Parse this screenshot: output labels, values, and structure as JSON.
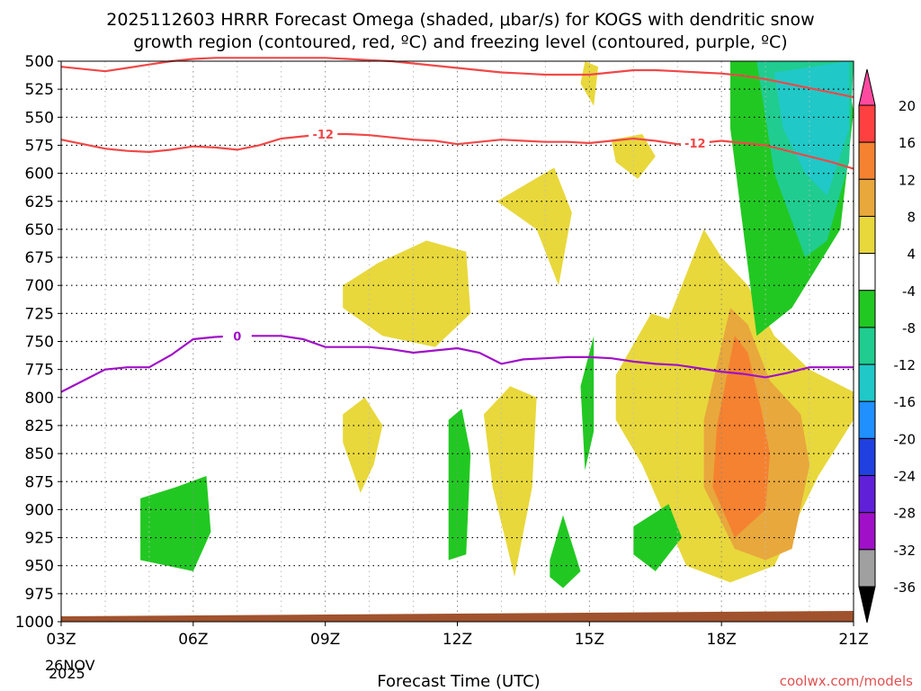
{
  "chart_data": {
    "type": "contour",
    "title_line1": "2025112603 HRRR Forecast Omega (shaded, μbar/s) for KOGS with dendritic snow",
    "title_line2": "growth region (contoured, red, ºC) and freezing level (contoured, purple, ºC)",
    "xlabel": "Forecast Time (UTC)",
    "x_ticks": [
      "03Z",
      "06Z",
      "09Z",
      "12Z",
      "15Z",
      "18Z",
      "21Z"
    ],
    "x_start_date": "26NOV",
    "x_start_year": "2025",
    "x_range_hours": [
      3,
      21
    ],
    "y_ticks": [
      500,
      525,
      550,
      575,
      600,
      625,
      650,
      675,
      700,
      725,
      750,
      775,
      800,
      825,
      850,
      875,
      900,
      925,
      950,
      975,
      1000
    ],
    "y_range_hpa": [
      500,
      1000
    ],
    "grid": true,
    "credit": "coolwx.com/models",
    "colorbar": {
      "levels": [
        "20",
        "16",
        "12",
        "8",
        "4",
        "-4",
        "-8",
        "-12",
        "-16",
        "-20",
        "-24",
        "-28",
        "-32",
        "-36"
      ],
      "colors": [
        "#ff4aa0",
        "#ff4040",
        "#f58230",
        "#e8a83c",
        "#e8d83c",
        "#ffffff",
        "#22c822",
        "#20cc90",
        "#20c8c8",
        "#2090ff",
        "#2040e0",
        "#6020d8",
        "#a010c8",
        "#a0a0a0",
        "#000000"
      ]
    },
    "contour_labels": {
      "dgz": "-12",
      "freezing": "0"
    },
    "series": [
      {
        "name": "freezing level 0C (purple)",
        "x": [
          3,
          3.5,
          4,
          4.5,
          5,
          5.5,
          6,
          6.5,
          7,
          7.5,
          8,
          8.5,
          9,
          9.5,
          10,
          10.5,
          11,
          11.5,
          12,
          12.5,
          13,
          13.5,
          14,
          14.5,
          15,
          15.5,
          16,
          16.5,
          17,
          17.5,
          18,
          18.5,
          19,
          19.5,
          20,
          20.5,
          21
        ],
        "y": [
          795,
          785,
          775,
          773,
          773,
          762,
          748,
          746,
          745,
          745,
          745,
          748,
          755,
          755,
          755,
          757,
          760,
          758,
          756,
          760,
          770,
          766,
          765,
          764,
          764,
          765,
          768,
          770,
          771,
          774,
          777,
          779,
          782,
          778,
          773,
          773,
          773
        ]
      },
      {
        "name": "DGZ -12C lower (red)",
        "x": [
          3,
          3.5,
          4,
          4.5,
          5,
          5.5,
          6,
          6.5,
          7,
          7.5,
          8,
          8.5,
          9,
          9.5,
          10,
          10.5,
          11,
          11.5,
          12,
          12.5,
          13,
          13.5,
          14,
          14.5,
          15,
          15.5,
          16,
          16.5,
          17,
          17.5,
          18,
          18.5,
          19,
          19.5,
          20,
          20.5,
          21
        ],
        "y": [
          570,
          574,
          578,
          580,
          581,
          579,
          576,
          577,
          579,
          575,
          569,
          567,
          565,
          565,
          566,
          568,
          570,
          571,
          574,
          572,
          570,
          571,
          572,
          572,
          573,
          571,
          569,
          571,
          574,
          573,
          571,
          573,
          575,
          580,
          585,
          590,
          596
        ]
      },
      {
        "name": "DGZ -12C upper (red)",
        "x": [
          3,
          3.5,
          4,
          4.5,
          5,
          5.5,
          6,
          6.5,
          7,
          7.5,
          8,
          8.5,
          9,
          9.5,
          10,
          10.5,
          11,
          11.5,
          12,
          12.5,
          13,
          13.5,
          14,
          14.5,
          15,
          15.5,
          16,
          16.5,
          17,
          17.5,
          18,
          18.5,
          19,
          19.5,
          20,
          20.5,
          21
        ],
        "y": [
          505,
          507,
          509,
          506,
          503,
          500,
          498,
          497,
          497,
          497,
          497,
          497,
          497,
          498,
          499,
          500,
          502,
          504,
          506,
          508,
          510,
          511,
          512,
          512,
          512,
          510,
          508,
          508,
          509,
          510,
          511,
          513,
          516,
          520,
          524,
          528,
          532
        ]
      }
    ],
    "shaded_regions": [
      {
        "value": 6,
        "x": [
          15.5,
          16.2,
          16.5,
          16.1,
          15.6
        ],
        "y": [
          570,
          565,
          585,
          605,
          590
        ]
      },
      {
        "value": 6,
        "x": [
          14.9,
          15.2,
          15.1,
          14.8
        ],
        "y": [
          500,
          505,
          540,
          520
        ]
      },
      {
        "value": 6,
        "x": [
          12.9,
          14.2,
          14.6,
          14.3,
          13.8
        ],
        "y": [
          625,
          595,
          635,
          700,
          650
        ]
      },
      {
        "value": 6,
        "x": [
          9.4,
          10.2,
          11.3,
          12.2,
          12.3,
          11.5,
          10.3,
          9.4
        ],
        "y": [
          700,
          680,
          660,
          670,
          725,
          755,
          745,
          720
        ]
      },
      {
        "value": 6,
        "x": [
          9.4,
          9.9,
          10.3,
          10.1,
          9.8,
          9.4
        ],
        "y": [
          815,
          800,
          825,
          860,
          885,
          840
        ]
      },
      {
        "value": 6,
        "x": [
          12.6,
          13.2,
          13.8,
          13.7,
          13.3,
          12.8
        ],
        "y": [
          815,
          790,
          800,
          880,
          960,
          880
        ]
      },
      {
        "value": 6,
        "x": [
          15.6,
          16.4,
          16.8,
          17.2,
          17.6,
          18.0,
          18.6,
          19.2,
          20.0,
          21.0,
          21.0,
          20.2,
          19.2,
          18.2,
          17.2,
          16.2,
          15.6
        ],
        "y": [
          780,
          725,
          730,
          690,
          650,
          675,
          700,
          745,
          775,
          795,
          820,
          870,
          950,
          965,
          950,
          860,
          820
        ]
      },
      {
        "value": 10,
        "x": [
          17.6,
          18.2,
          18.6,
          19.1,
          19.8,
          20.0,
          19.6,
          19.0,
          18.3,
          17.6
        ],
        "y": [
          820,
          720,
          735,
          785,
          815,
          860,
          935,
          945,
          935,
          880
        ]
      },
      {
        "value": 14,
        "x": [
          17.9,
          18.3,
          18.6,
          18.9,
          19.1,
          19.0,
          18.3,
          17.8
        ],
        "y": [
          825,
          745,
          760,
          810,
          850,
          900,
          925,
          880
        ]
      },
      {
        "value": -6,
        "x": [
          4.8,
          5.6,
          6.3,
          6.4,
          6.0,
          4.8
        ],
        "y": [
          890,
          880,
          870,
          920,
          955,
          945
        ]
      },
      {
        "value": -6,
        "x": [
          11.8,
          12.1,
          12.3,
          12.2,
          11.8
        ],
        "y": [
          820,
          810,
          850,
          940,
          945
        ]
      },
      {
        "value": -6,
        "x": [
          14.1,
          14.4,
          14.8,
          14.4,
          14.1
        ],
        "y": [
          945,
          905,
          955,
          970,
          960
        ]
      },
      {
        "value": -6,
        "x": [
          16.0,
          16.8,
          17.1,
          16.5,
          16.0
        ],
        "y": [
          915,
          895,
          925,
          955,
          940
        ]
      },
      {
        "value": -6,
        "x": [
          14.8,
          15.1,
          15.1,
          14.9
        ],
        "y": [
          790,
          745,
          830,
          865
        ]
      },
      {
        "value": -6,
        "x": [
          18.2,
          19.6,
          20.8,
          21.0,
          20.7,
          19.6,
          18.8,
          18.2
        ],
        "y": [
          500,
          500,
          500,
          545,
          650,
          720,
          745,
          560
        ]
      },
      {
        "value": -10,
        "x": [
          18.8,
          20.0,
          21.0,
          20.9,
          20.4,
          19.9,
          19.2
        ],
        "y": [
          500,
          500,
          500,
          590,
          660,
          675,
          600
        ]
      },
      {
        "value": -14,
        "x": [
          19.2,
          20.9,
          20.9,
          20.4,
          19.9,
          19.4
        ],
        "y": [
          510,
          500,
          560,
          620,
          600,
          560
        ]
      }
    ]
  }
}
